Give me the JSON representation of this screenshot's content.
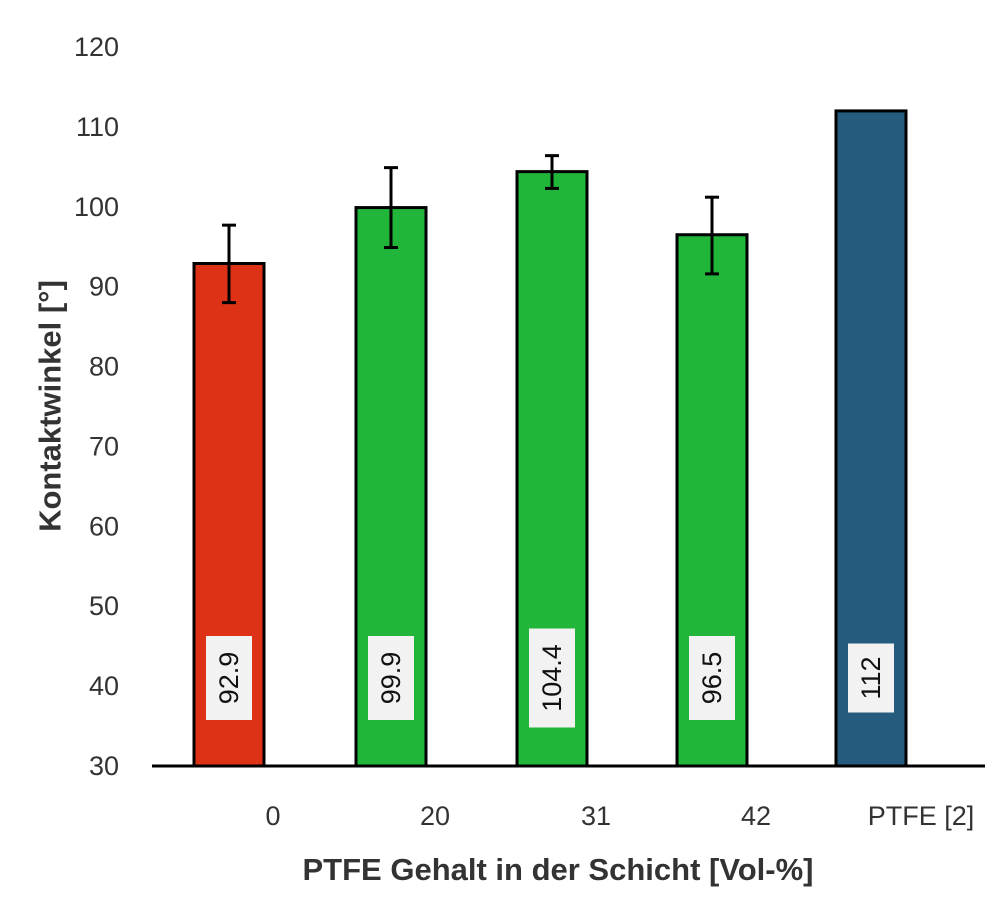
{
  "chart_data": {
    "type": "bar",
    "categories": [
      "0",
      "20",
      "31",
      "42",
      "PTFE [2]"
    ],
    "values": [
      92.9,
      99.9,
      104.4,
      96.5,
      112
    ],
    "value_labels": [
      "92.9",
      "99.9",
      "104.4",
      "96.5",
      "112"
    ],
    "error_bars": [
      [
        88.0,
        97.7
      ],
      [
        94.9,
        104.9
      ],
      [
        102.3,
        106.4
      ],
      [
        91.6,
        101.2
      ],
      null
    ],
    "colors": [
      "#de3217",
      "#21b639",
      "#21b639",
      "#21b639",
      "#255b7d"
    ],
    "xlabel": "PTFE Gehalt in der Schicht [Vol-%]",
    "ylabel": "Kontaktwinkel [°]",
    "ylim": [
      30,
      120
    ],
    "yticks": [
      30,
      40,
      50,
      60,
      70,
      80,
      90,
      100,
      110,
      120
    ],
    "grid": false,
    "legend": "none"
  }
}
